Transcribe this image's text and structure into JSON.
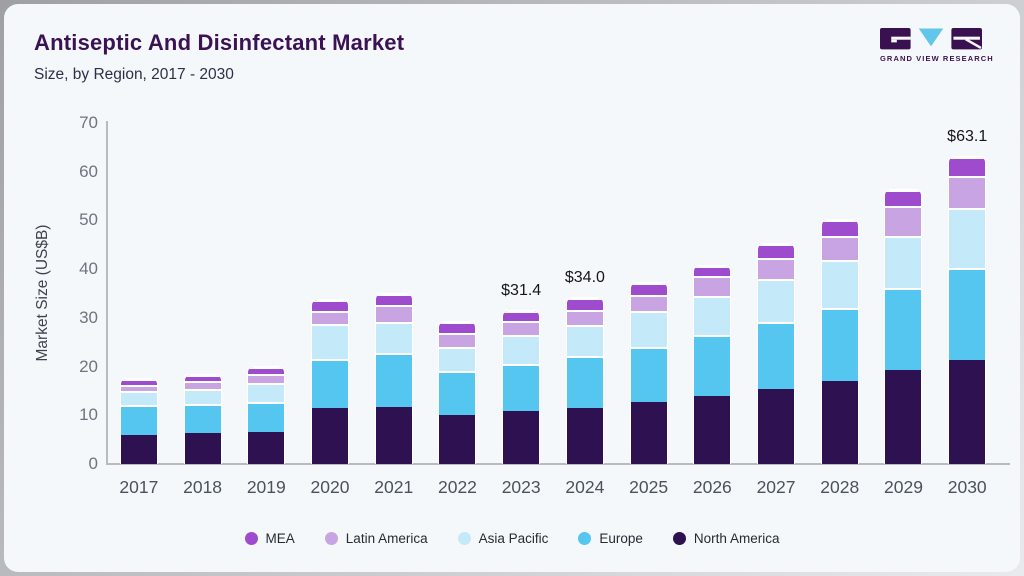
{
  "header": {
    "title": "Antiseptic And Disinfectant Market",
    "subtitle": "Size, by Region, 2017 - 2030"
  },
  "logo": {
    "text": "GRAND VIEW RESEARCH",
    "purple": "#3a1150",
    "blue": "#62c5ea"
  },
  "chart_data": {
    "type": "bar",
    "stacked": true,
    "title": "Antiseptic And Disinfectant Market",
    "subtitle": "Size, by Region, 2017 - 2030",
    "ylabel": "Market Size (US$B)",
    "ylim": [
      0,
      70
    ],
    "yticks": [
      0,
      10,
      20,
      30,
      40,
      50,
      60,
      70
    ],
    "grid": false,
    "legend_position": "bottom",
    "legend_order": [
      "MEA",
      "Latin America",
      "Asia Pacific",
      "Europe",
      "North America"
    ],
    "categories": [
      "2017",
      "2018",
      "2019",
      "2020",
      "2021",
      "2022",
      "2023",
      "2024",
      "2025",
      "2026",
      "2027",
      "2028",
      "2029",
      "2030"
    ],
    "series": [
      {
        "name": "North America",
        "color": "#2e1150",
        "values": [
          6.0,
          6.4,
          6.6,
          11.6,
          11.8,
          10.1,
          10.9,
          11.6,
          12.8,
          14.0,
          15.5,
          17.1,
          19.2,
          21.4
        ]
      },
      {
        "name": "Europe",
        "color": "#55c6f0",
        "values": [
          6.1,
          5.9,
          6.2,
          10.0,
          10.9,
          8.9,
          9.7,
          10.5,
          11.3,
          12.5,
          13.6,
          14.9,
          16.9,
          18.8
        ]
      },
      {
        "name": "Asia Pacific",
        "color": "#c4e9f9",
        "values": [
          2.9,
          3.1,
          3.8,
          7.1,
          6.4,
          5.0,
          5.9,
          6.4,
          7.4,
          7.9,
          8.9,
          9.8,
          10.8,
          12.4
        ]
      },
      {
        "name": "Latin America",
        "color": "#c9a4e3",
        "values": [
          1.2,
          1.6,
          1.8,
          2.8,
          3.6,
          3.0,
          2.8,
          3.2,
          3.1,
          4.1,
          4.2,
          5.0,
          6.0,
          6.6
        ]
      },
      {
        "name": "MEA",
        "color": "#9e4bce",
        "values": [
          1.2,
          1.3,
          1.5,
          2.2,
          2.3,
          2.1,
          2.1,
          2.3,
          2.5,
          2.2,
          3.0,
          3.3,
          3.3,
          3.9
        ]
      }
    ],
    "annotations": [
      {
        "category": "2023",
        "label": "$31.4"
      },
      {
        "category": "2024",
        "label": "$34.0"
      },
      {
        "category": "2030",
        "label": "$63.1"
      }
    ]
  }
}
